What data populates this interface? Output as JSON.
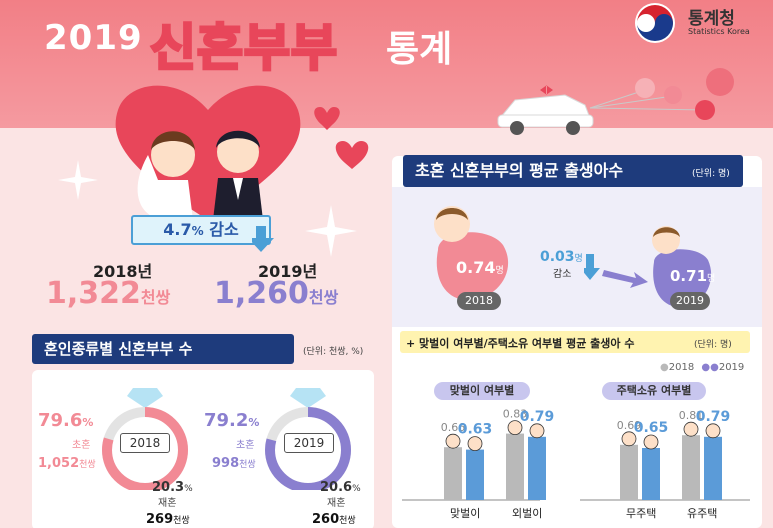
{
  "header": {
    "year": "2019",
    "title": "신혼부부",
    "subtitle": "통계",
    "logo_name": "통계청",
    "logo_eng": "Statistics Korea"
  },
  "overview": {
    "badge_value": "4.7",
    "badge_unit": "%",
    "badge_text": "감소",
    "y2018_label": "2018년",
    "y2018_value": "1,322",
    "y2018_unit": "천쌍",
    "y2019_label": "2019년",
    "y2019_value": "1,260",
    "y2019_unit": "천쌍"
  },
  "marriage_type": {
    "title": "혼인종류별 신혼부부 수",
    "unit": "(단위: 천쌍, %)",
    "rings": [
      {
        "year": "2018",
        "first_pct": "79.6",
        "first_pct_unit": "%",
        "first_label": "초혼",
        "first_value": "1,052",
        "first_unit": "천쌍",
        "re_pct": "20.3",
        "re_pct_unit": "%",
        "re_label": "재혼",
        "re_value": "269",
        "re_unit": "천쌍",
        "first_fraction": 0.796,
        "color": "#f28a95"
      },
      {
        "year": "2019",
        "first_pct": "79.2",
        "first_pct_unit": "%",
        "first_label": "초혼",
        "first_value": "998",
        "first_unit": "천쌍",
        "re_pct": "20.6",
        "re_pct_unit": "%",
        "re_label": "재혼",
        "re_value": "260",
        "re_unit": "천쌍",
        "first_fraction": 0.792,
        "color": "#8a7fcf"
      }
    ]
  },
  "births": {
    "title": "초혼 신혼부부의 평균 출생아수",
    "unit": "(단위: 명)",
    "v2018": "0.74",
    "v2018_unit": "명",
    "y2018": "2018",
    "v2019": "0.71",
    "v2019_unit": "명",
    "y2019": "2019",
    "diff": "0.03",
    "diff_unit": "명",
    "diff_text": "감소"
  },
  "breakdown": {
    "title": "+ 맞벌이 여부별/주택소유 여부별 평균 출생아 수",
    "unit": "(단위: 명)",
    "legend_2018": "2018",
    "legend_2019": "2019",
    "color_2018": "#b9b9b9",
    "color_2019": "#5b9bd8",
    "groups": [
      {
        "title": "맞벌이 여부별",
        "categories": [
          {
            "label": "맞벌이",
            "v2018": "0.66",
            "v2019": "0.63"
          },
          {
            "label": "외벌이",
            "v2018": "0.83",
            "v2019": "0.79"
          }
        ]
      },
      {
        "title": "주택소유 여부별",
        "categories": [
          {
            "label": "무주택",
            "v2018": "0.69",
            "v2019": "0.65"
          },
          {
            "label": "유주택",
            "v2018": "0.81",
            "v2019": "0.79"
          }
        ]
      }
    ]
  }
}
